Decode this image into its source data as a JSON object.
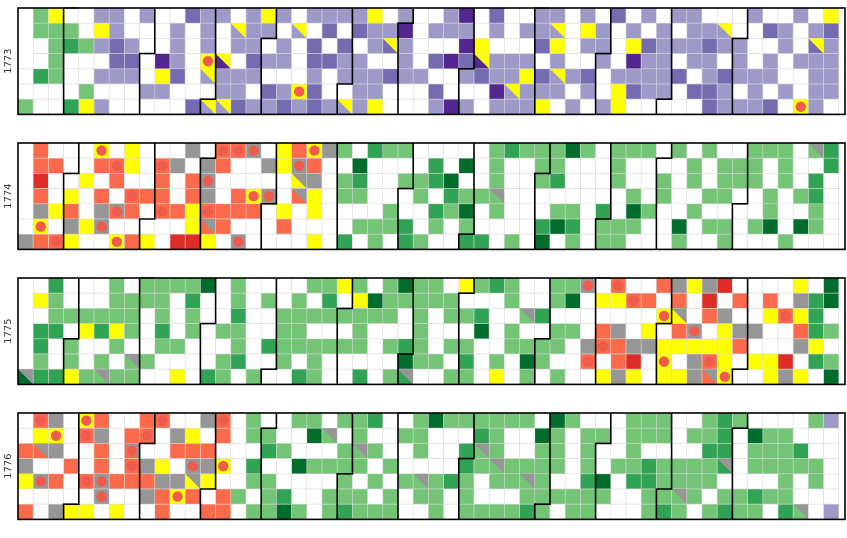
{
  "chart_data": {
    "type": "heatmap",
    "title": "",
    "xlabel": "",
    "ylabel": "",
    "layout": "calendar, one row of week-columns per year, 7 weekday cells per column, bold outlines separate months",
    "years": [
      "1773",
      "1774",
      "1775",
      "1776"
    ],
    "colors": {
      "empty": "#ffffff",
      "purple_light": "#9e9ac8",
      "purple_mid": "#756bb1",
      "purple_dark": "#54278f",
      "yellow": "#ffff00",
      "green_light": "#74c476",
      "green_mid": "#31a354",
      "green_dark": "#006d2c",
      "red": "#fb6a4a",
      "red_dark": "#de2d26",
      "gray": "#969696",
      "marker": "#ef5b4c",
      "grid": "#d9d9d9",
      "outline": "#000000"
    },
    "legend": "none shown",
    "cell_types_per_year": {
      "1773": "mostly purple and green with yellow highlights",
      "1774": "red and yellow with markers in first months, green afterwards",
      "1775": "green, then red/yellow with markers and gray in later months",
      "1776": "red/yellow with markers in first months, green afterwards"
    }
  }
}
